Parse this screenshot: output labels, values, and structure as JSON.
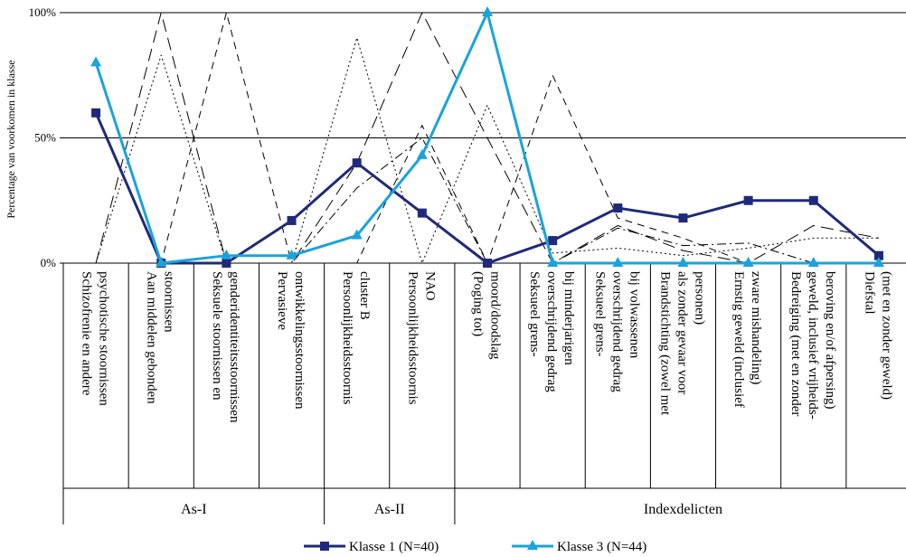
{
  "chart_data": {
    "type": "line",
    "ylabel": "Percentage van voorkomen in klasse",
    "ylim": [
      0,
      100
    ],
    "yticks": [
      {
        "value": 0,
        "label": "0%"
      },
      {
        "value": 50,
        "label": "50%"
      },
      {
        "value": 100,
        "label": "100%"
      }
    ],
    "grid": "horizontal",
    "legend_position": "bottom",
    "categories": [
      "Schizofrenie en andere|psychotische stoornissen",
      "Aan middelen gebonden|stoornissen",
      "Seksuele stoornissen en|genderidentiteitsstoornissen",
      "Pervasieve|ontwikkelingsstoornissen",
      "Persoonlijkheidsstoornis|cluster B",
      "Persoonlijkheidsstoornis|NAO",
      "(Poging tot)|moord/doodslag",
      "Seksueel grens-|overschrijdend gedrag|bij minderjarigen",
      "Seksueel grens-|overschrijdend gedrag|bij volwassenen",
      "Brandstichting (zowel met|als zonder gevaar voor|personen)",
      "Ernstig geweld (inclusief|zware mishandeling)",
      "Bedreiging (met en zonder|geweld, inclusief vrijheids-|beroving en/of afpersing)",
      "Diefstal|(met en zonder geweld)"
    ],
    "groups": [
      {
        "label": "As-I",
        "start": 0,
        "end": 3
      },
      {
        "label": "As-II",
        "start": 4,
        "end": 5
      },
      {
        "label": "Indexdelicten",
        "start": 6,
        "end": 12
      }
    ],
    "series": [
      {
        "name": "Klasse 1 (N=40)",
        "color": "#1f2a7a",
        "marker": "square",
        "style": "solid",
        "values": [
          60,
          0,
          0,
          17,
          40,
          20,
          0,
          9,
          22,
          18,
          25,
          25,
          3
        ]
      },
      {
        "name": "Klasse 3 (N=44)",
        "color": "#1aa3dc",
        "marker": "triangle",
        "style": "solid",
        "values": [
          80,
          0,
          3,
          3,
          11,
          43,
          100,
          0,
          0,
          0,
          0,
          0,
          0
        ]
      },
      {
        "name": "",
        "color": "#000000",
        "marker": "none",
        "style": "long-dash",
        "values": [
          0,
          100,
          0,
          0,
          40,
          100,
          50,
          0,
          15,
          5,
          0,
          15,
          10
        ]
      },
      {
        "name": "",
        "color": "#000000",
        "marker": "none",
        "style": "dash",
        "values": [
          0,
          0,
          100,
          0,
          0,
          55,
          0,
          75,
          18,
          10,
          0,
          0,
          0
        ]
      },
      {
        "name": "",
        "color": "#000000",
        "marker": "none",
        "style": "dot",
        "values": [
          0,
          83,
          0,
          0,
          90,
          0,
          63,
          4,
          6,
          3,
          6,
          10,
          10
        ]
      },
      {
        "name": "",
        "color": "#000000",
        "marker": "none",
        "style": "dash-dot",
        "values": [
          0,
          0,
          0,
          0,
          30,
          50,
          0,
          0,
          14,
          7,
          8,
          0,
          0
        ]
      }
    ]
  }
}
